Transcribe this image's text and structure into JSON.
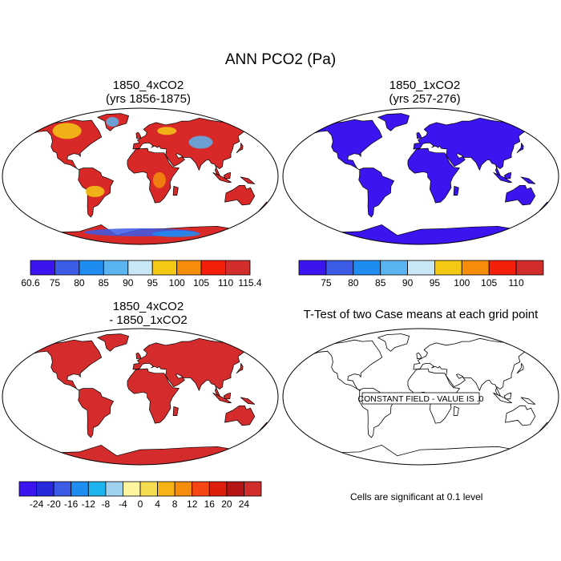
{
  "page": {
    "title": "ANN PCO2 (Pa)"
  },
  "panels": [
    {
      "id": "p1",
      "title_line1": "1850_4xCO2",
      "title_line2": "(yrs 1856-1875)",
      "land_color": "#d82828"
    },
    {
      "id": "p2",
      "title_line1": "1850_1xCO2",
      "title_line2": "(yrs 257-276)",
      "land_color": "#3c14f0"
    },
    {
      "id": "p3",
      "title_line1": "1850_4xCO2",
      "title_line2": "- 1850_1xCO2",
      "land_color": "#d42c2c"
    },
    {
      "id": "p4",
      "title_line1": "T-Test of two Case means at each grid point",
      "title_line2": "",
      "land_color": "#ffffff"
    }
  ],
  "annotations": {
    "constant_field": "CONSTANT FIELD - VALUE IS .0",
    "significance": "Cells are significant at 0.1 level"
  },
  "chart_data": [
    {
      "type": "heatmap",
      "title": "1850_4xCO2 (yrs 1856-1875)",
      "variable": "ANN PCO2 (Pa)",
      "colorbar": {
        "labels": [
          "60.6",
          "75",
          "80",
          "85",
          "90",
          "95",
          "100",
          "105",
          "110",
          "115.4"
        ],
        "colors": [
          "#3c14f0",
          "#3c5ce6",
          "#1e8cf0",
          "#5ab4f0",
          "#c8e6f5",
          "#f5c814",
          "#f58c0a",
          "#f51e0a",
          "#d22d2d"
        ]
      }
    },
    {
      "type": "heatmap",
      "title": "1850_1xCO2 (yrs 257-276)",
      "variable": "ANN PCO2 (Pa)",
      "colorbar": {
        "labels": [
          "75",
          "80",
          "85",
          "90",
          "95",
          "100",
          "105",
          "110"
        ],
        "colors": [
          "#3c14f0",
          "#3c5ce6",
          "#1e8cf0",
          "#5ab4f0",
          "#c8e6f5",
          "#f5c814",
          "#f58c0a",
          "#f51e0a",
          "#d22d2d"
        ]
      }
    },
    {
      "type": "heatmap",
      "title": "1850_4xCO2 - 1850_1xCO2",
      "variable": "ANN PCO2 (Pa)",
      "colorbar": {
        "labels": [
          "-24",
          "-20",
          "-16",
          "-12",
          "-8",
          "-4",
          "0",
          "4",
          "8",
          "12",
          "16",
          "20",
          "24"
        ],
        "colors": [
          "#3c14f0",
          "#2828dc",
          "#3c5ce6",
          "#1e8cf0",
          "#1eb4f0",
          "#a0d2f0",
          "#fff5a0",
          "#f5dc50",
          "#f5b414",
          "#f58c0a",
          "#f54614",
          "#dc1e0a",
          "#b41414",
          "#d22d2d"
        ]
      }
    },
    {
      "type": "heatmap",
      "title": "T-Test of two Case means at each grid point",
      "annotation": "CONSTANT FIELD - VALUE IS .0",
      "footnote": "Cells are significant at 0.1 level"
    }
  ]
}
